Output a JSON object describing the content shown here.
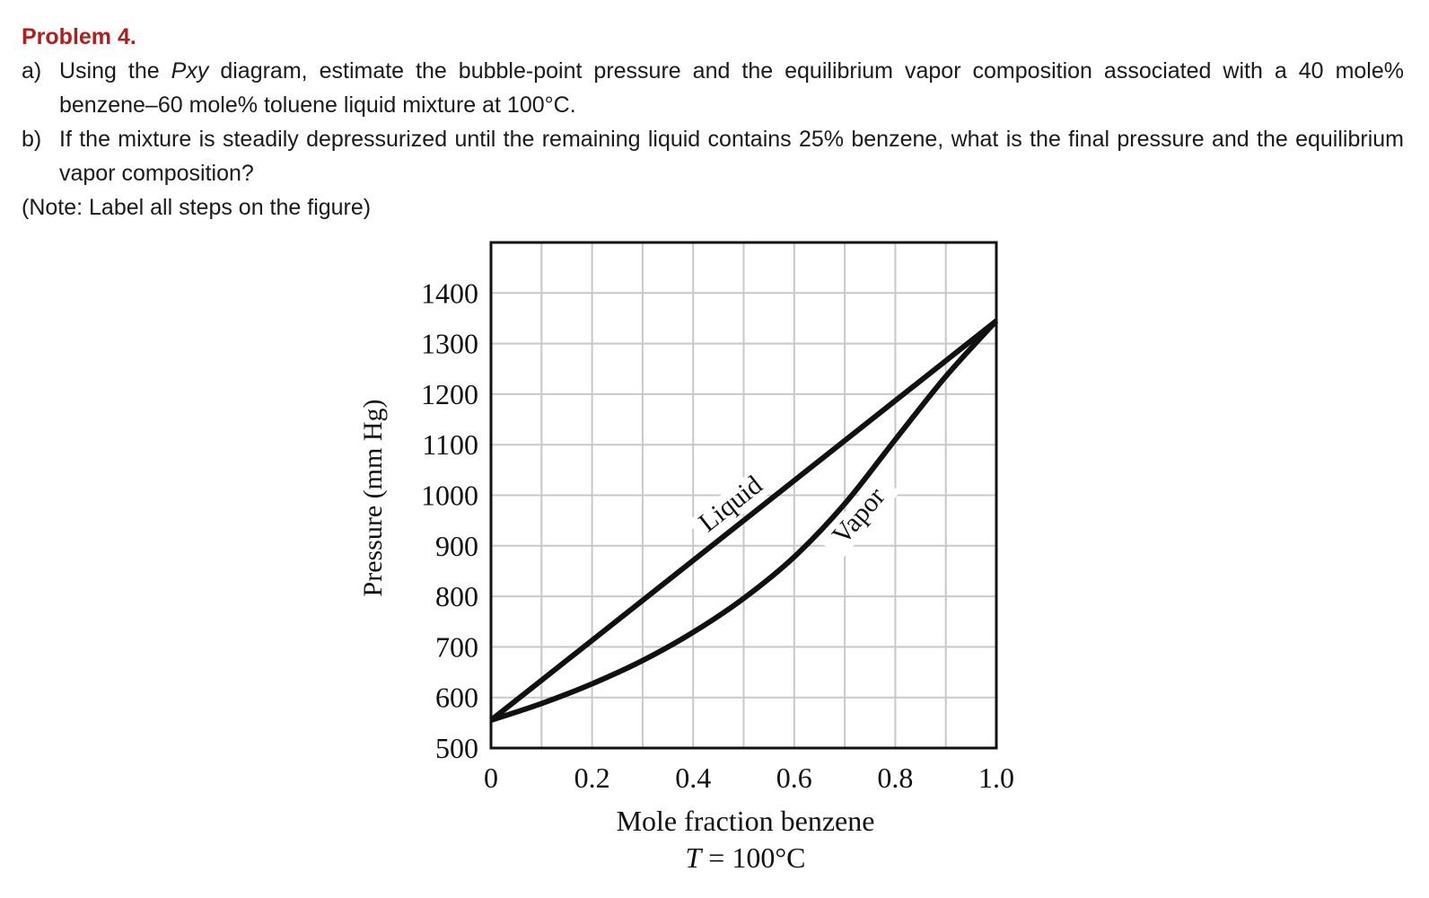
{
  "problem": {
    "title": "Problem 4.",
    "a_label": "a)",
    "a_pre": "Using the ",
    "a_em": "Pxy",
    "a_post": " diagram, estimate the bubble-point pressure and the equilibrium vapor composition associated with a 40 mole% benzene–60 mole% toluene liquid mixture at 100°C.",
    "b_label": "b)",
    "b_text": "If the mixture is steadily depressurized until the remaining liquid contains 25% benzene, what is the final pressure and the equilibrium vapor composition?",
    "note": "(Note: Label all steps on the figure)"
  },
  "chart_data": {
    "type": "line",
    "xlabel": "Mole fraction benzene",
    "subtitle_var": "T",
    "subtitle_value": " = 100°C",
    "ylabel": "Pressure (mm Hg)",
    "xlim": [
      0,
      1.0
    ],
    "ylim": [
      500,
      1500
    ],
    "x_ticks": [
      {
        "value": 0,
        "label": "0"
      },
      {
        "value": 0.2,
        "label": "0.2"
      },
      {
        "value": 0.4,
        "label": "0.4"
      },
      {
        "value": 0.6,
        "label": "0.6"
      },
      {
        "value": 0.8,
        "label": "0.8"
      },
      {
        "value": 1.0,
        "label": "1.0"
      }
    ],
    "y_ticks": [
      {
        "value": 500,
        "label": "500"
      },
      {
        "value": 600,
        "label": "600"
      },
      {
        "value": 700,
        "label": "700"
      },
      {
        "value": 800,
        "label": "800"
      },
      {
        "value": 900,
        "label": "900"
      },
      {
        "value": 1000,
        "label": "1000"
      },
      {
        "value": 1100,
        "label": "1100"
      },
      {
        "value": 1200,
        "label": "1200"
      },
      {
        "value": 1300,
        "label": "1300"
      },
      {
        "value": 1400,
        "label": "1400"
      }
    ],
    "grid": true,
    "grid_x_step": 0.1,
    "grid_y_step": 100,
    "series": [
      {
        "name": "Liquid",
        "label_at": 0.5,
        "x": [
          0,
          1.0
        ],
        "y": [
          555,
          1345
        ]
      },
      {
        "name": "Vapor",
        "label_at": 0.7,
        "x": [
          0,
          0.1,
          0.2,
          0.3,
          0.4,
          0.5,
          0.6,
          0.7,
          0.8,
          0.9,
          1.0
        ],
        "y": [
          555,
          588,
          627,
          673,
          729,
          796,
          878,
          983,
          1110,
          1235,
          1345
        ]
      }
    ]
  }
}
